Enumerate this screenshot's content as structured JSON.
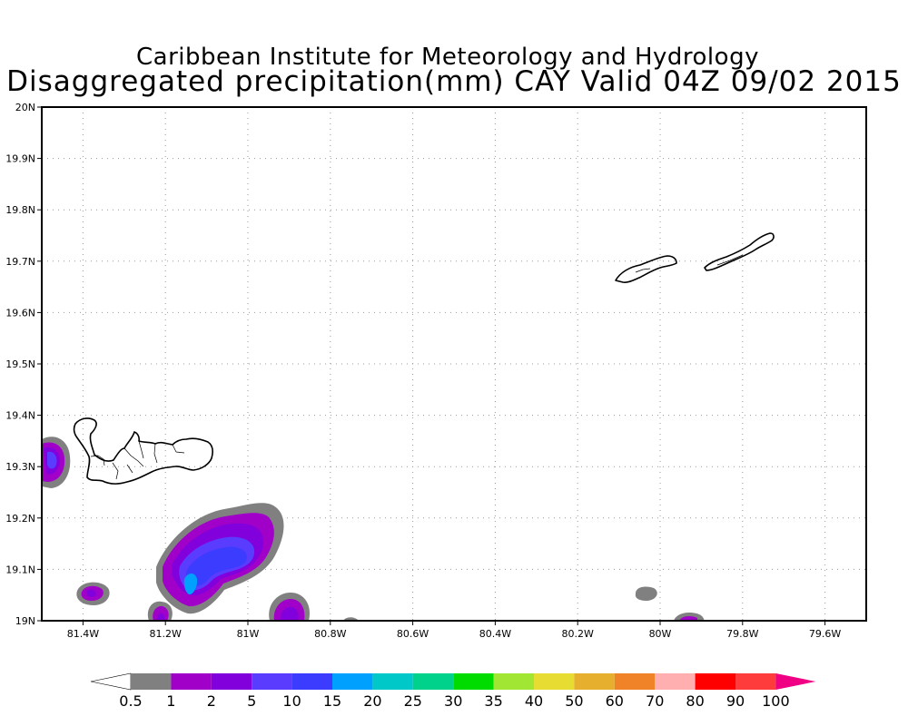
{
  "title": {
    "line1": "Caribbean Institute for Meteorology and Hydrology",
    "line2": "Disaggregated precipitation(mm) CAY Valid 04Z 09/02 2015"
  },
  "map": {
    "lon_range": [
      -81.5,
      -79.5
    ],
    "lat_range": [
      19.0,
      20.0
    ],
    "grid": true,
    "lat_labels": [
      "20N",
      "19.9N",
      "19.8N",
      "19.7N",
      "19.6N",
      "19.5N",
      "19.4N",
      "19.3N",
      "19.2N",
      "19.1N",
      "19N"
    ],
    "lon_labels": [
      "81.4W",
      "81.2W",
      "81W",
      "80.8W",
      "80.6W",
      "80.4W",
      "80.2W",
      "80W",
      "79.8W",
      "79.6W"
    ],
    "islands": [
      "Grand Cayman",
      "Little Cayman",
      "Cayman Brac"
    ]
  },
  "colorbar": {
    "labels": [
      "0.5",
      "1",
      "2",
      "5",
      "10",
      "15",
      "20",
      "25",
      "30",
      "35",
      "40",
      "50",
      "60",
      "70",
      "80",
      "90",
      "100"
    ],
    "colors": [
      "#ffffff",
      "#808080",
      "#a000c8",
      "#8200dc",
      "#5a3cff",
      "#3c3cff",
      "#00a0ff",
      "#00c8c8",
      "#00d28c",
      "#00dc00",
      "#a0e632",
      "#e6dc32",
      "#e6af2d",
      "#f08228",
      "#ffafaf",
      "#ff0000",
      "#ff3c3c",
      "#f00082"
    ]
  }
}
